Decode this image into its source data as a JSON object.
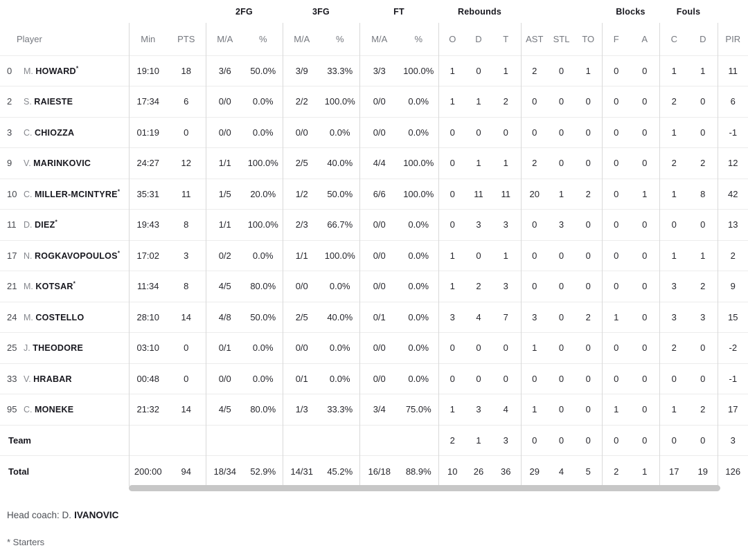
{
  "header": {
    "groups": {
      "fg2": "2FG",
      "fg3": "3FG",
      "ft": "FT",
      "rebounds": "Rebounds",
      "blocks": "Blocks",
      "fouls": "Fouls"
    },
    "cols": {
      "player": "Player",
      "min": "Min",
      "pts": "PTS",
      "ma": "M/A",
      "pct": "%",
      "reb_o": "O",
      "reb_d": "D",
      "reb_t": "T",
      "ast": "AST",
      "stl": "STL",
      "to": "TO",
      "blk_f": "F",
      "blk_a": "A",
      "foul_c": "C",
      "foul_d": "D",
      "pir": "PIR"
    }
  },
  "table": {
    "rows": [
      {
        "num": "0",
        "initial": "M.",
        "last": "HOWARD",
        "starter": true,
        "min": "19:10",
        "pts": "18",
        "fg2_ma": "3/6",
        "fg2_pct": "50.0%",
        "fg3_ma": "3/9",
        "fg3_pct": "33.3%",
        "ft_ma": "3/3",
        "ft_pct": "100.0%",
        "reb_o": "1",
        "reb_d": "0",
        "reb_t": "1",
        "ast": "2",
        "stl": "0",
        "to": "1",
        "blk_f": "0",
        "blk_a": "0",
        "foul_c": "1",
        "foul_d": "1",
        "pir": "11"
      },
      {
        "num": "2",
        "initial": "S.",
        "last": "RAIESTE",
        "starter": false,
        "min": "17:34",
        "pts": "6",
        "fg2_ma": "0/0",
        "fg2_pct": "0.0%",
        "fg3_ma": "2/2",
        "fg3_pct": "100.0%",
        "ft_ma": "0/0",
        "ft_pct": "0.0%",
        "reb_o": "1",
        "reb_d": "1",
        "reb_t": "2",
        "ast": "0",
        "stl": "0",
        "to": "0",
        "blk_f": "0",
        "blk_a": "0",
        "foul_c": "2",
        "foul_d": "0",
        "pir": "6"
      },
      {
        "num": "3",
        "initial": "C.",
        "last": "CHIOZZA",
        "starter": false,
        "min": "01:19",
        "pts": "0",
        "fg2_ma": "0/0",
        "fg2_pct": "0.0%",
        "fg3_ma": "0/0",
        "fg3_pct": "0.0%",
        "ft_ma": "0/0",
        "ft_pct": "0.0%",
        "reb_o": "0",
        "reb_d": "0",
        "reb_t": "0",
        "ast": "0",
        "stl": "0",
        "to": "0",
        "blk_f": "0",
        "blk_a": "0",
        "foul_c": "1",
        "foul_d": "0",
        "pir": "-1"
      },
      {
        "num": "9",
        "initial": "V.",
        "last": "MARINKOVIC",
        "starter": false,
        "min": "24:27",
        "pts": "12",
        "fg2_ma": "1/1",
        "fg2_pct": "100.0%",
        "fg3_ma": "2/5",
        "fg3_pct": "40.0%",
        "ft_ma": "4/4",
        "ft_pct": "100.0%",
        "reb_o": "0",
        "reb_d": "1",
        "reb_t": "1",
        "ast": "2",
        "stl": "0",
        "to": "0",
        "blk_f": "0",
        "blk_a": "0",
        "foul_c": "2",
        "foul_d": "2",
        "pir": "12"
      },
      {
        "num": "10",
        "initial": "C.",
        "last": "MILLER-MCINTYRE",
        "starter": true,
        "min": "35:31",
        "pts": "11",
        "fg2_ma": "1/5",
        "fg2_pct": "20.0%",
        "fg3_ma": "1/2",
        "fg3_pct": "50.0%",
        "ft_ma": "6/6",
        "ft_pct": "100.0%",
        "reb_o": "0",
        "reb_d": "11",
        "reb_t": "11",
        "ast": "20",
        "stl": "1",
        "to": "2",
        "blk_f": "0",
        "blk_a": "1",
        "foul_c": "1",
        "foul_d": "8",
        "pir": "42"
      },
      {
        "num": "11",
        "initial": "D.",
        "last": "DIEZ",
        "starter": true,
        "min": "19:43",
        "pts": "8",
        "fg2_ma": "1/1",
        "fg2_pct": "100.0%",
        "fg3_ma": "2/3",
        "fg3_pct": "66.7%",
        "ft_ma": "0/0",
        "ft_pct": "0.0%",
        "reb_o": "0",
        "reb_d": "3",
        "reb_t": "3",
        "ast": "0",
        "stl": "3",
        "to": "0",
        "blk_f": "0",
        "blk_a": "0",
        "foul_c": "0",
        "foul_d": "0",
        "pir": "13"
      },
      {
        "num": "17",
        "initial": "N.",
        "last": "ROGKAVOPOULOS",
        "starter": true,
        "min": "17:02",
        "pts": "3",
        "fg2_ma": "0/2",
        "fg2_pct": "0.0%",
        "fg3_ma": "1/1",
        "fg3_pct": "100.0%",
        "ft_ma": "0/0",
        "ft_pct": "0.0%",
        "reb_o": "1",
        "reb_d": "0",
        "reb_t": "1",
        "ast": "0",
        "stl": "0",
        "to": "0",
        "blk_f": "0",
        "blk_a": "0",
        "foul_c": "1",
        "foul_d": "1",
        "pir": "2"
      },
      {
        "num": "21",
        "initial": "M.",
        "last": "KOTSAR",
        "starter": true,
        "min": "11:34",
        "pts": "8",
        "fg2_ma": "4/5",
        "fg2_pct": "80.0%",
        "fg3_ma": "0/0",
        "fg3_pct": "0.0%",
        "ft_ma": "0/0",
        "ft_pct": "0.0%",
        "reb_o": "1",
        "reb_d": "2",
        "reb_t": "3",
        "ast": "0",
        "stl": "0",
        "to": "0",
        "blk_f": "0",
        "blk_a": "0",
        "foul_c": "3",
        "foul_d": "2",
        "pir": "9"
      },
      {
        "num": "24",
        "initial": "M.",
        "last": "COSTELLO",
        "starter": false,
        "min": "28:10",
        "pts": "14",
        "fg2_ma": "4/8",
        "fg2_pct": "50.0%",
        "fg3_ma": "2/5",
        "fg3_pct": "40.0%",
        "ft_ma": "0/1",
        "ft_pct": "0.0%",
        "reb_o": "3",
        "reb_d": "4",
        "reb_t": "7",
        "ast": "3",
        "stl": "0",
        "to": "2",
        "blk_f": "1",
        "blk_a": "0",
        "foul_c": "3",
        "foul_d": "3",
        "pir": "15"
      },
      {
        "num": "25",
        "initial": "J.",
        "last": "THEODORE",
        "starter": false,
        "min": "03:10",
        "pts": "0",
        "fg2_ma": "0/1",
        "fg2_pct": "0.0%",
        "fg3_ma": "0/0",
        "fg3_pct": "0.0%",
        "ft_ma": "0/0",
        "ft_pct": "0.0%",
        "reb_o": "0",
        "reb_d": "0",
        "reb_t": "0",
        "ast": "1",
        "stl": "0",
        "to": "0",
        "blk_f": "0",
        "blk_a": "0",
        "foul_c": "2",
        "foul_d": "0",
        "pir": "-2"
      },
      {
        "num": "33",
        "initial": "V.",
        "last": "HRABAR",
        "starter": false,
        "min": "00:48",
        "pts": "0",
        "fg2_ma": "0/0",
        "fg2_pct": "0.0%",
        "fg3_ma": "0/1",
        "fg3_pct": "0.0%",
        "ft_ma": "0/0",
        "ft_pct": "0.0%",
        "reb_o": "0",
        "reb_d": "0",
        "reb_t": "0",
        "ast": "0",
        "stl": "0",
        "to": "0",
        "blk_f": "0",
        "blk_a": "0",
        "foul_c": "0",
        "foul_d": "0",
        "pir": "-1"
      },
      {
        "num": "95",
        "initial": "C.",
        "last": "MONEKE",
        "starter": false,
        "min": "21:32",
        "pts": "14",
        "fg2_ma": "4/5",
        "fg2_pct": "80.0%",
        "fg3_ma": "1/3",
        "fg3_pct": "33.3%",
        "ft_ma": "3/4",
        "ft_pct": "75.0%",
        "reb_o": "1",
        "reb_d": "3",
        "reb_t": "4",
        "ast": "1",
        "stl": "0",
        "to": "0",
        "blk_f": "1",
        "blk_a": "0",
        "foul_c": "1",
        "foul_d": "2",
        "pir": "17"
      },
      {
        "label": "Team",
        "min": "",
        "pts": "",
        "fg2_ma": "",
        "fg2_pct": "",
        "fg3_ma": "",
        "fg3_pct": "",
        "ft_ma": "",
        "ft_pct": "",
        "reb_o": "2",
        "reb_d": "1",
        "reb_t": "3",
        "ast": "0",
        "stl": "0",
        "to": "0",
        "blk_f": "0",
        "blk_a": "0",
        "foul_c": "0",
        "foul_d": "0",
        "pir": "3"
      },
      {
        "label": "Total",
        "min": "200:00",
        "pts": "94",
        "fg2_ma": "18/34",
        "fg2_pct": "52.9%",
        "fg3_ma": "14/31",
        "fg3_pct": "45.2%",
        "ft_ma": "16/18",
        "ft_pct": "88.9%",
        "reb_o": "10",
        "reb_d": "26",
        "reb_t": "36",
        "ast": "29",
        "stl": "4",
        "to": "5",
        "blk_f": "2",
        "blk_a": "1",
        "foul_c": "17",
        "foul_d": "19",
        "pir": "126"
      }
    ]
  },
  "footer": {
    "head_coach_prefix": "Head coach: D.",
    "head_coach_name": "IVANOVIC",
    "starters_note": "* Starters"
  },
  "colors": {
    "divider": "#d9d9d9",
    "row_border": "#ececec",
    "text_dark": "#26262c",
    "text_gray": "#75787f",
    "scrollbar_thumb": "#c7c7c7"
  }
}
